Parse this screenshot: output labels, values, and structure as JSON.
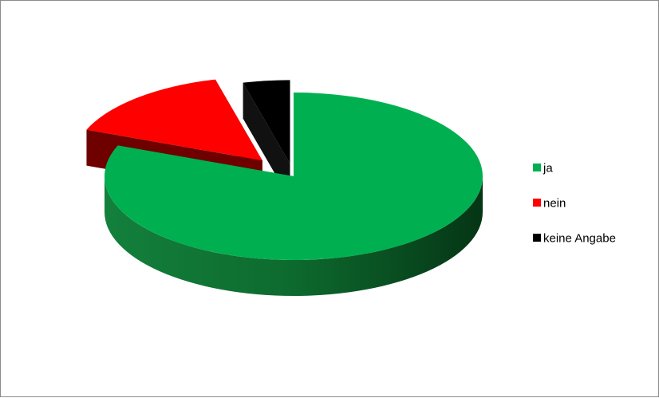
{
  "chart_data": {
    "type": "pie",
    "style": "3d-exploded",
    "categories": [
      "ja",
      "nein",
      "keine Angabe"
    ],
    "values": [
      81,
      15,
      4
    ],
    "colors": [
      "#00b050",
      "#ff0000",
      "#000000"
    ],
    "side_colors": [
      "#0a5a22",
      "#6e0000",
      "#111111"
    ],
    "legend": {
      "entries": [
        "ja",
        "nein",
        "keine Angabe"
      ],
      "placement": "right"
    }
  }
}
